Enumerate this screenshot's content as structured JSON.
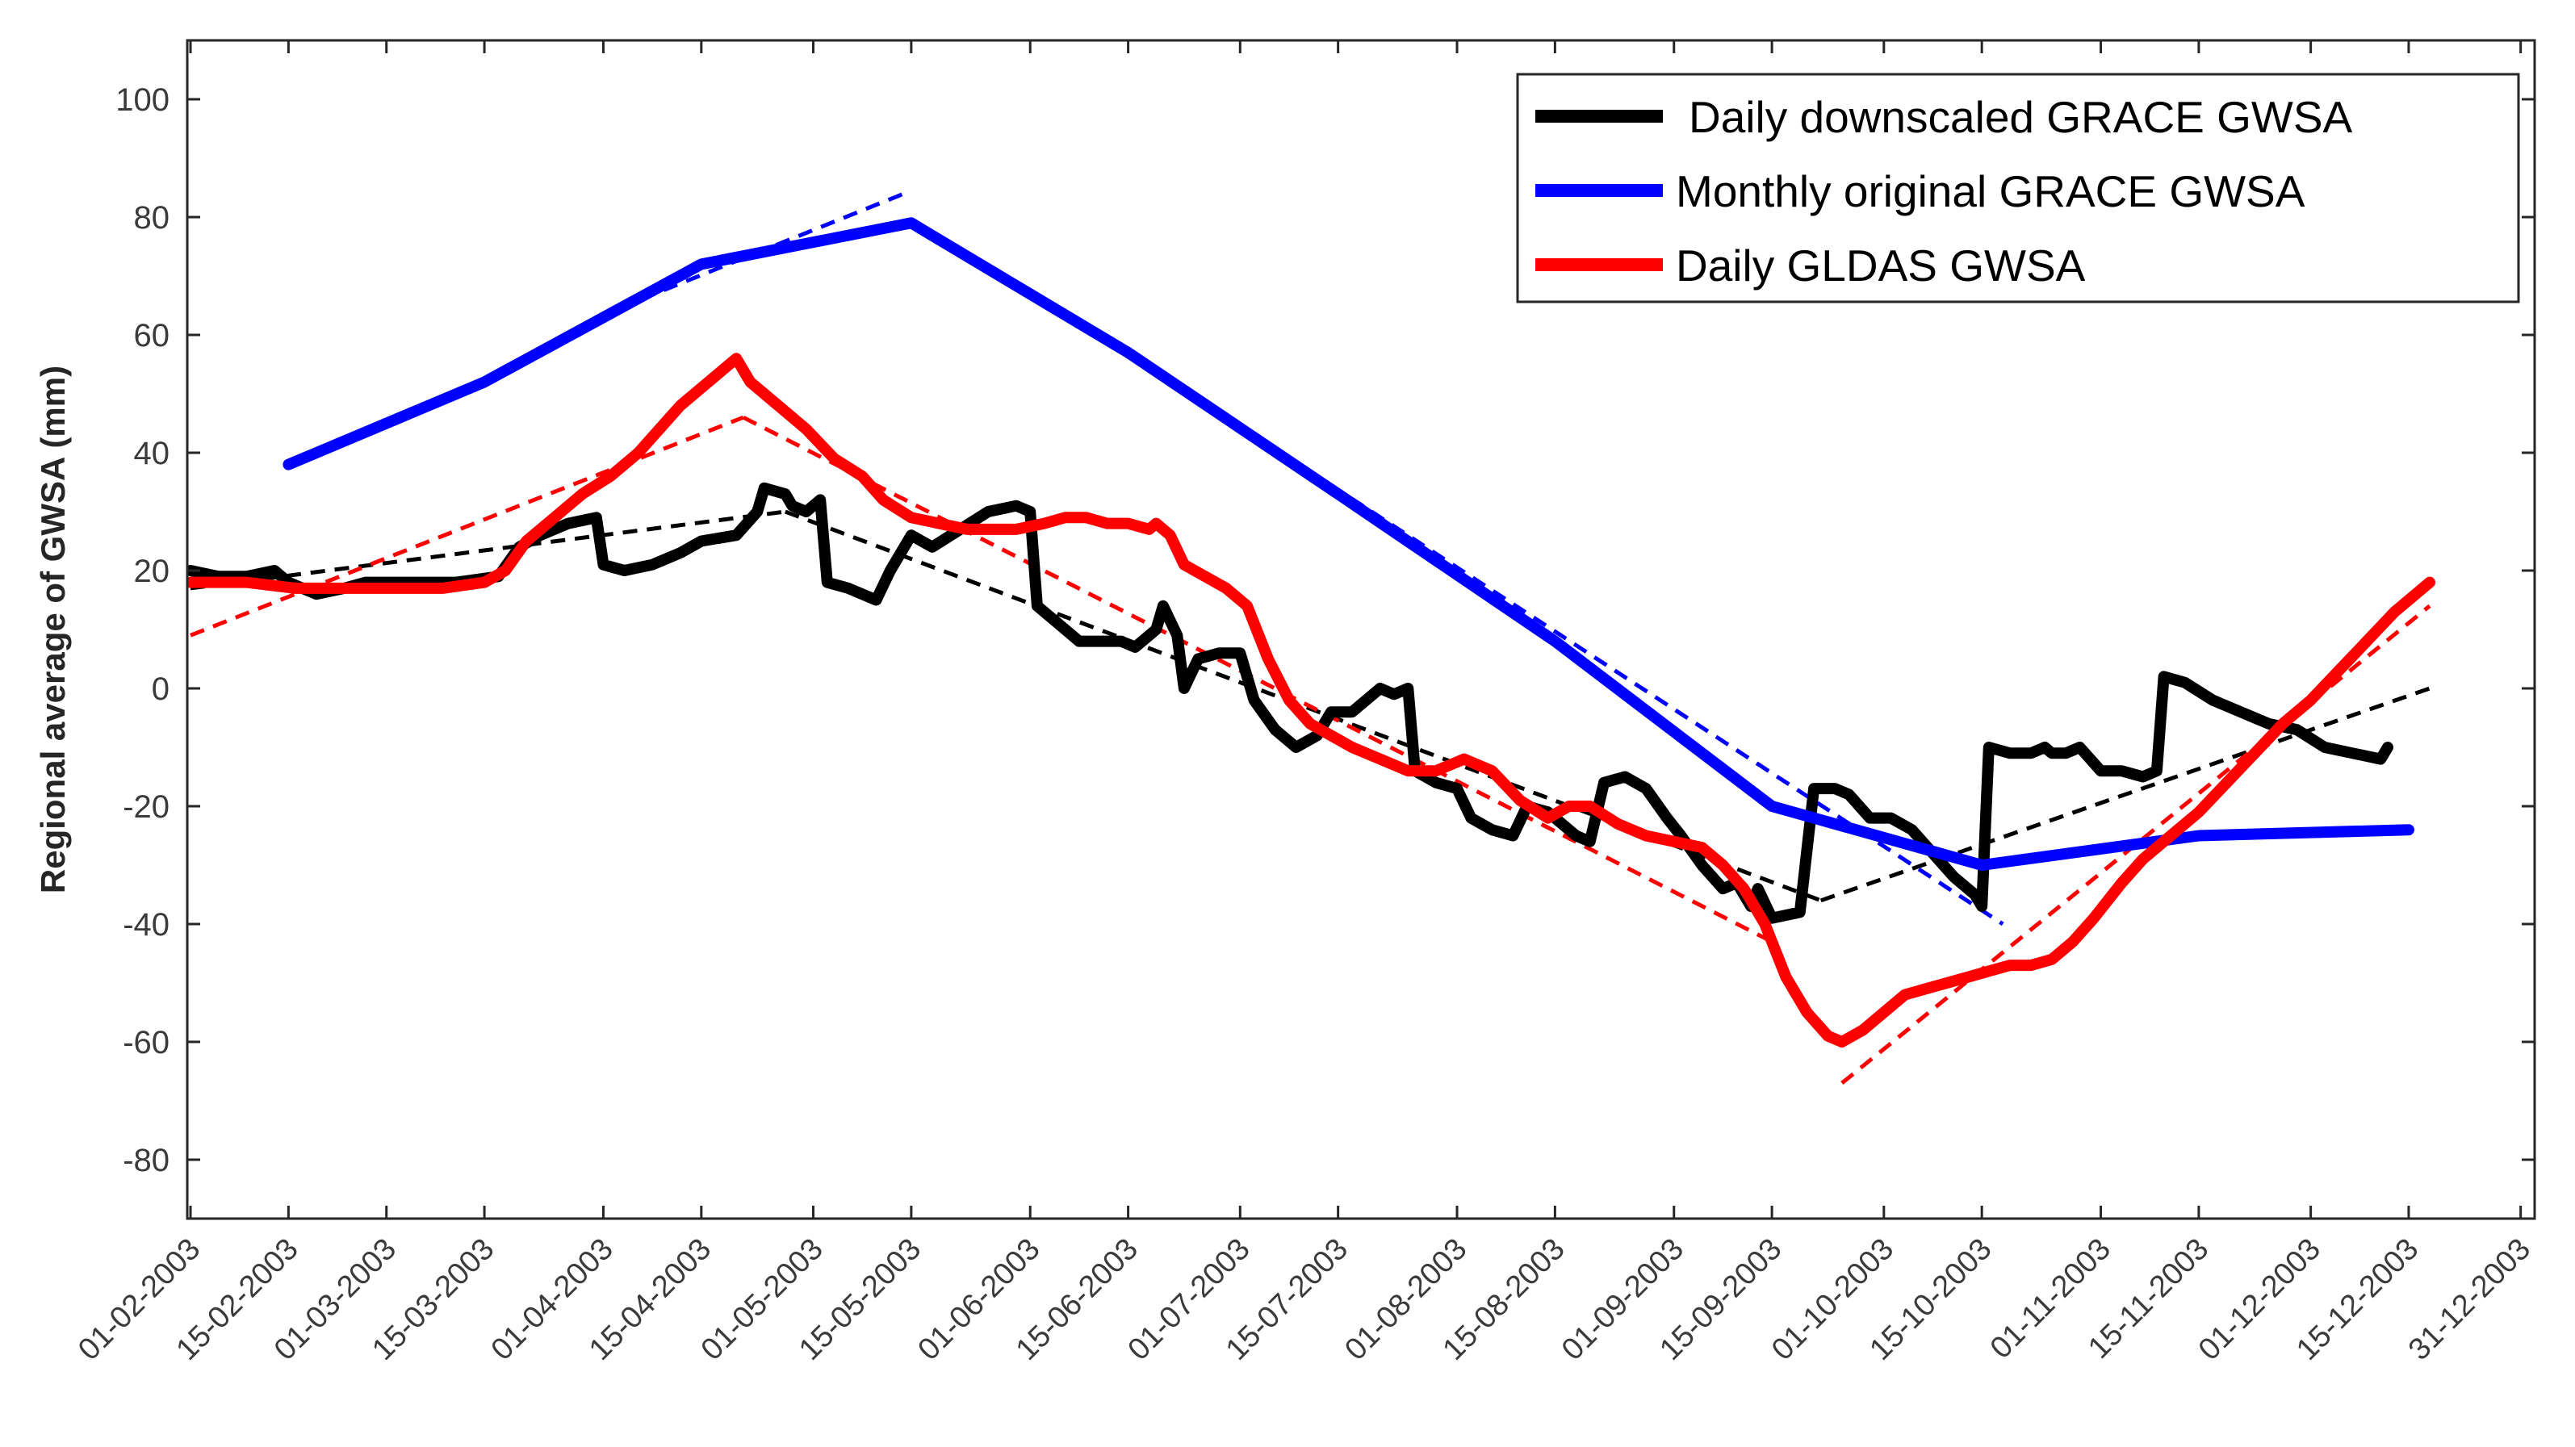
{
  "chart_data": {
    "type": "line",
    "title": "",
    "xlabel": "",
    "ylabel": "Regional average of GWSA (mm)",
    "ylim": [
      -90,
      110
    ],
    "yticks": [
      100,
      80,
      60,
      40,
      20,
      0,
      -20,
      -40,
      -60,
      -80
    ],
    "xlim": [
      0,
      335
    ],
    "xticks": [
      {
        "label": "01-02-2003",
        "day": 0
      },
      {
        "label": "15-02-2003",
        "day": 14
      },
      {
        "label": "01-03-2003",
        "day": 28
      },
      {
        "label": "15-03-2003",
        "day": 42
      },
      {
        "label": "01-04-2003",
        "day": 59
      },
      {
        "label": "15-04-2003",
        "day": 73
      },
      {
        "label": "01-05-2003",
        "day": 89
      },
      {
        "label": "15-05-2003",
        "day": 103
      },
      {
        "label": "01-06-2003",
        "day": 120
      },
      {
        "label": "15-06-2003",
        "day": 134
      },
      {
        "label": "01-07-2003",
        "day": 150
      },
      {
        "label": "15-07-2003",
        "day": 164
      },
      {
        "label": "01-08-2003",
        "day": 181
      },
      {
        "label": "15-08-2003",
        "day": 195
      },
      {
        "label": "01-09-2003",
        "day": 212
      },
      {
        "label": "15-09-2003",
        "day": 226
      },
      {
        "label": "01-10-2003",
        "day": 242
      },
      {
        "label": "15-10-2003",
        "day": 256
      },
      {
        "label": "01-11-2003",
        "day": 273
      },
      {
        "label": "15-11-2003",
        "day": 287
      },
      {
        "label": "01-12-2003",
        "day": 303
      },
      {
        "label": "15-12-2003",
        "day": 317
      },
      {
        "label": "31-12-2003",
        "day": 333
      }
    ],
    "legend_position": "top-right",
    "series": [
      {
        "name": "Daily downscaled GRACE GWSA",
        "color": "#000000",
        "points": [
          [
            0,
            20
          ],
          [
            4,
            19
          ],
          [
            8,
            19
          ],
          [
            12,
            20
          ],
          [
            14,
            18
          ],
          [
            18,
            16
          ],
          [
            22,
            17
          ],
          [
            25,
            18
          ],
          [
            32,
            18
          ],
          [
            38,
            18
          ],
          [
            44,
            19
          ],
          [
            47,
            24
          ],
          [
            50,
            26
          ],
          [
            54,
            28
          ],
          [
            58,
            29
          ],
          [
            59,
            21
          ],
          [
            62,
            20
          ],
          [
            66,
            21
          ],
          [
            70,
            23
          ],
          [
            73,
            25
          ],
          [
            78,
            26
          ],
          [
            81,
            30
          ],
          [
            82,
            34
          ],
          [
            85,
            33
          ],
          [
            86,
            31
          ],
          [
            88,
            30
          ],
          [
            90,
            32
          ],
          [
            91,
            18
          ],
          [
            94,
            17
          ],
          [
            98,
            15
          ],
          [
            100,
            20
          ],
          [
            103,
            26
          ],
          [
            106,
            24
          ],
          [
            110,
            27
          ],
          [
            114,
            30
          ],
          [
            118,
            31
          ],
          [
            120,
            30
          ],
          [
            121,
            14
          ],
          [
            124,
            11
          ],
          [
            127,
            8
          ],
          [
            130,
            8
          ],
          [
            133,
            8
          ],
          [
            135,
            7
          ],
          [
            138,
            10
          ],
          [
            139,
            14
          ],
          [
            141,
            9
          ],
          [
            142,
            0
          ],
          [
            144,
            5
          ],
          [
            147,
            6
          ],
          [
            150,
            6
          ],
          [
            152,
            -2
          ],
          [
            155,
            -7
          ],
          [
            158,
            -10
          ],
          [
            161,
            -8
          ],
          [
            163,
            -4
          ],
          [
            166,
            -4
          ],
          [
            168,
            -2
          ],
          [
            170,
            0
          ],
          [
            172,
            -1
          ],
          [
            174,
            0
          ],
          [
            175,
            -14
          ],
          [
            178,
            -16
          ],
          [
            181,
            -17
          ],
          [
            183,
            -22
          ],
          [
            186,
            -24
          ],
          [
            189,
            -25
          ],
          [
            191,
            -20
          ],
          [
            194,
            -21
          ],
          [
            196,
            -23
          ],
          [
            198,
            -25
          ],
          [
            200,
            -26
          ],
          [
            202,
            -16
          ],
          [
            205,
            -15
          ],
          [
            208,
            -17
          ],
          [
            211,
            -22
          ],
          [
            213,
            -25
          ],
          [
            216,
            -30
          ],
          [
            219,
            -34
          ],
          [
            221,
            -33
          ],
          [
            223,
            -37
          ],
          [
            224,
            -34
          ],
          [
            226,
            -39
          ],
          [
            230,
            -38
          ],
          [
            232,
            -17
          ],
          [
            235,
            -17
          ],
          [
            237,
            -18
          ],
          [
            240,
            -22
          ],
          [
            243,
            -22
          ],
          [
            246,
            -24
          ],
          [
            249,
            -28
          ],
          [
            252,
            -32
          ],
          [
            255,
            -35
          ],
          [
            256,
            -37
          ],
          [
            257,
            -10
          ],
          [
            260,
            -11
          ],
          [
            263,
            -11
          ],
          [
            265,
            -10
          ],
          [
            266,
            -11
          ],
          [
            268,
            -11
          ],
          [
            270,
            -10
          ],
          [
            273,
            -14
          ],
          [
            276,
            -14
          ],
          [
            279,
            -15
          ],
          [
            281,
            -14
          ],
          [
            282,
            2
          ],
          [
            285,
            1
          ],
          [
            289,
            -2
          ],
          [
            293,
            -4
          ],
          [
            297,
            -6
          ],
          [
            301,
            -7
          ],
          [
            305,
            -10
          ],
          [
            309,
            -11
          ],
          [
            313,
            -12
          ],
          [
            314,
            -10
          ]
        ]
      },
      {
        "name": "Monthly original GRACE GWSA",
        "color": "#0000ff",
        "points": [
          [
            14,
            38
          ],
          [
            42,
            52
          ],
          [
            73,
            72
          ],
          [
            103,
            79
          ],
          [
            134,
            57
          ],
          [
            164,
            33
          ],
          [
            195,
            8
          ],
          [
            226,
            -20
          ],
          [
            256,
            -30
          ],
          [
            287,
            -25
          ],
          [
            317,
            -24
          ]
        ]
      },
      {
        "name": "Daily GLDAS GWSA",
        "color": "#ff0000",
        "points": [
          [
            0,
            18
          ],
          [
            8,
            18
          ],
          [
            15,
            17
          ],
          [
            22,
            17
          ],
          [
            30,
            17
          ],
          [
            36,
            17
          ],
          [
            42,
            18
          ],
          [
            45,
            20
          ],
          [
            48,
            25
          ],
          [
            52,
            29
          ],
          [
            56,
            33
          ],
          [
            60,
            36
          ],
          [
            64,
            40
          ],
          [
            67,
            44
          ],
          [
            70,
            48
          ],
          [
            73,
            51
          ],
          [
            76,
            54
          ],
          [
            78,
            56
          ],
          [
            80,
            52
          ],
          [
            84,
            48
          ],
          [
            88,
            44
          ],
          [
            92,
            39
          ],
          [
            96,
            36
          ],
          [
            99,
            32
          ],
          [
            103,
            29
          ],
          [
            107,
            28
          ],
          [
            111,
            27
          ],
          [
            114,
            27
          ],
          [
            118,
            27
          ],
          [
            122,
            28
          ],
          [
            125,
            29
          ],
          [
            128,
            29
          ],
          [
            131,
            28
          ],
          [
            134,
            28
          ],
          [
            137,
            27
          ],
          [
            138,
            28
          ],
          [
            140,
            26
          ],
          [
            142,
            21
          ],
          [
            145,
            19
          ],
          [
            148,
            17
          ],
          [
            151,
            14
          ],
          [
            154,
            5
          ],
          [
            157,
            -2
          ],
          [
            160,
            -6
          ],
          [
            163,
            -8
          ],
          [
            166,
            -10
          ],
          [
            170,
            -12
          ],
          [
            174,
            -14
          ],
          [
            178,
            -14
          ],
          [
            182,
            -12
          ],
          [
            186,
            -14
          ],
          [
            190,
            -19
          ],
          [
            194,
            -22
          ],
          [
            197,
            -20
          ],
          [
            200,
            -20
          ],
          [
            204,
            -23
          ],
          [
            208,
            -25
          ],
          [
            212,
            -26
          ],
          [
            216,
            -27
          ],
          [
            219,
            -30
          ],
          [
            222,
            -34
          ],
          [
            225,
            -40
          ],
          [
            228,
            -49
          ],
          [
            231,
            -55
          ],
          [
            234,
            -59
          ],
          [
            236,
            -60
          ],
          [
            239,
            -58
          ],
          [
            242,
            -55
          ],
          [
            245,
            -52
          ],
          [
            248,
            -51
          ],
          [
            251,
            -50
          ],
          [
            254,
            -49
          ],
          [
            257,
            -48
          ],
          [
            260,
            -47
          ],
          [
            263,
            -47
          ],
          [
            266,
            -46
          ],
          [
            269,
            -43
          ],
          [
            272,
            -39
          ],
          [
            276,
            -33
          ],
          [
            279,
            -29
          ],
          [
            283,
            -25
          ],
          [
            287,
            -21
          ],
          [
            291,
            -16
          ],
          [
            295,
            -11
          ],
          [
            299,
            -6
          ],
          [
            303,
            -2
          ],
          [
            307,
            3
          ],
          [
            311,
            8
          ],
          [
            315,
            13
          ],
          [
            320,
            18
          ]
        ]
      }
    ],
    "trend_lines": [
      {
        "name": "black trend 1",
        "color": "#000000",
        "points": [
          [
            0,
            17
          ],
          [
            85,
            30
          ]
        ]
      },
      {
        "name": "black trend 2",
        "color": "#000000",
        "points": [
          [
            85,
            30
          ],
          [
            233,
            -36
          ]
        ]
      },
      {
        "name": "black trend 3",
        "color": "#000000",
        "points": [
          [
            233,
            -36
          ],
          [
            320,
            0
          ]
        ]
      },
      {
        "name": "blue trend 1",
        "color": "#0000ff",
        "points": [
          [
            58,
            63
          ],
          [
            102,
            84
          ]
        ]
      },
      {
        "name": "blue trend 2",
        "color": "#0000ff",
        "points": [
          [
            134,
            57
          ],
          [
            259,
            -40
          ]
        ]
      },
      {
        "name": "red trend 1",
        "color": "#ff0000",
        "points": [
          [
            0,
            9
          ],
          [
            79,
            46
          ]
        ]
      },
      {
        "name": "red trend 2",
        "color": "#ff0000",
        "points": [
          [
            79,
            46
          ],
          [
            226,
            -43
          ]
        ]
      },
      {
        "name": "red trend 3",
        "color": "#ff0000",
        "points": [
          [
            236,
            -67
          ],
          [
            320,
            14
          ]
        ]
      }
    ]
  }
}
